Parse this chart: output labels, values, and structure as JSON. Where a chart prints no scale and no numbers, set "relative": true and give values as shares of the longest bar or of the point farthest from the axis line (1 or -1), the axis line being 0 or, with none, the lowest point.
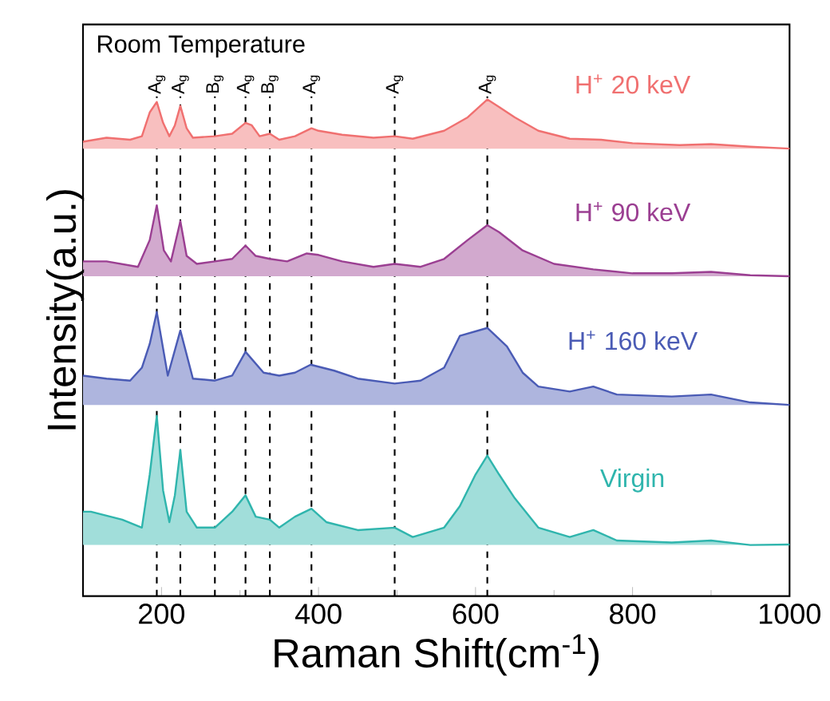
{
  "chart_data": {
    "type": "area",
    "relative": true,
    "xlabel": "Raman Shift(cm$^{-1}$)",
    "ylabel": "Intensity(a.u.)",
    "xlim": [
      100,
      1000
    ],
    "xticks": [
      200,
      400,
      600,
      800,
      1000
    ],
    "annotations": [
      "Room Temperature"
    ],
    "grid": false,
    "ref_lines": [
      {
        "axis": "x",
        "value": 194,
        "label": "A$_{g}$",
        "color": "#000000",
        "line_style": "dashed"
      },
      {
        "axis": "x",
        "value": 224,
        "label": "A$_{g}$",
        "color": "#000000",
        "line_style": "dashed"
      },
      {
        "axis": "x",
        "value": 268,
        "label": "B$_{g}$",
        "color": "#000000",
        "line_style": "dashed"
      },
      {
        "axis": "x",
        "value": 307,
        "label": "A$_{g}$",
        "color": "#000000",
        "line_style": "dashed"
      },
      {
        "axis": "x",
        "value": 338,
        "label": "B$_{g}$",
        "color": "#000000",
        "line_style": "dashed"
      },
      {
        "axis": "x",
        "value": 391,
        "label": "A$_{g}$",
        "color": "#000000",
        "line_style": "dashed"
      },
      {
        "axis": "x",
        "value": 497,
        "label": "A$_{g}$",
        "color": "#000000",
        "line_style": "dashed"
      },
      {
        "axis": "x",
        "value": 615,
        "label": "A$_{g}$",
        "color": "#000000",
        "line_style": "dashed"
      }
    ],
    "series": [
      {
        "name": "H$^{+}$ 20 keV",
        "color": "#f07070",
        "x": [
          100,
          130,
          160,
          175,
          185,
          194,
          202,
          210,
          217,
          224,
          232,
          240,
          268,
          290,
          307,
          315,
          325,
          338,
          350,
          370,
          391,
          400,
          430,
          470,
          497,
          520,
          560,
          590,
          615,
          630,
          650,
          680,
          720,
          760,
          800,
          860,
          900,
          950,
          1000
        ],
        "values": [
          0.915,
          0.923,
          0.919,
          0.926,
          0.974,
          0.995,
          0.953,
          0.926,
          0.948,
          0.987,
          0.942,
          0.923,
          0.926,
          0.931,
          0.953,
          0.948,
          0.926,
          0.931,
          0.919,
          0.926,
          0.942,
          0.937,
          0.929,
          0.923,
          0.926,
          0.921,
          0.937,
          0.964,
          1.0,
          0.985,
          0.964,
          0.937,
          0.921,
          0.919,
          0.912,
          0.908,
          0.91,
          0.905,
          0.901
        ]
      },
      {
        "name": "H$^{+}$ 90 keV",
        "color": "#9b3f92",
        "x": [
          100,
          130,
          170,
          185,
          194,
          203,
          212,
          224,
          232,
          245,
          268,
          290,
          307,
          320,
          338,
          360,
          385,
          400,
          430,
          470,
          497,
          530,
          560,
          590,
          615,
          630,
          660,
          700,
          750,
          800,
          850,
          900,
          950,
          1000
        ],
        "values": [
          0.674,
          0.674,
          0.663,
          0.717,
          0.787,
          0.696,
          0.674,
          0.755,
          0.685,
          0.669,
          0.674,
          0.679,
          0.706,
          0.685,
          0.679,
          0.674,
          0.69,
          0.687,
          0.674,
          0.663,
          0.669,
          0.663,
          0.679,
          0.717,
          0.747,
          0.733,
          0.696,
          0.669,
          0.658,
          0.65,
          0.65,
          0.653,
          0.646,
          0.644
        ]
      },
      {
        "name": "H$^{+}$ 160 keV",
        "color": "#4a5bb5",
        "x": [
          100,
          130,
          160,
          175,
          185,
          194,
          208,
          224,
          240,
          268,
          290,
          307,
          330,
          350,
          370,
          390,
          420,
          450,
          497,
          530,
          560,
          580,
          615,
          640,
          660,
          680,
          720,
          750,
          780,
          850,
          900,
          950,
          1000
        ],
        "values": [
          0.444,
          0.438,
          0.434,
          0.46,
          0.508,
          0.572,
          0.444,
          0.535,
          0.438,
          0.434,
          0.444,
          0.492,
          0.45,
          0.444,
          0.45,
          0.466,
          0.454,
          0.438,
          0.428,
          0.434,
          0.46,
          0.524,
          0.54,
          0.503,
          0.45,
          0.422,
          0.412,
          0.422,
          0.406,
          0.402,
          0.406,
          0.39,
          0.385
        ]
      },
      {
        "name": "Virgin",
        "color": "#2fb5ad",
        "x": [
          100,
          110,
          150,
          175,
          185,
          194,
          202,
          210,
          217,
          224,
          232,
          245,
          268,
          290,
          307,
          320,
          338,
          350,
          370,
          391,
          410,
          450,
          497,
          520,
          560,
          580,
          600,
          615,
          630,
          650,
          680,
          720,
          750,
          780,
          850,
          900,
          950,
          1000
        ],
        "values": [
          0.17,
          0.17,
          0.154,
          0.138,
          0.245,
          0.363,
          0.213,
          0.149,
          0.203,
          0.294,
          0.17,
          0.138,
          0.138,
          0.17,
          0.203,
          0.16,
          0.154,
          0.138,
          0.16,
          0.176,
          0.149,
          0.133,
          0.138,
          0.119,
          0.138,
          0.181,
          0.245,
          0.283,
          0.245,
          0.197,
          0.138,
          0.119,
          0.133,
          0.112,
          0.108,
          0.112,
          0.103,
          0.104
        ]
      }
    ]
  }
}
